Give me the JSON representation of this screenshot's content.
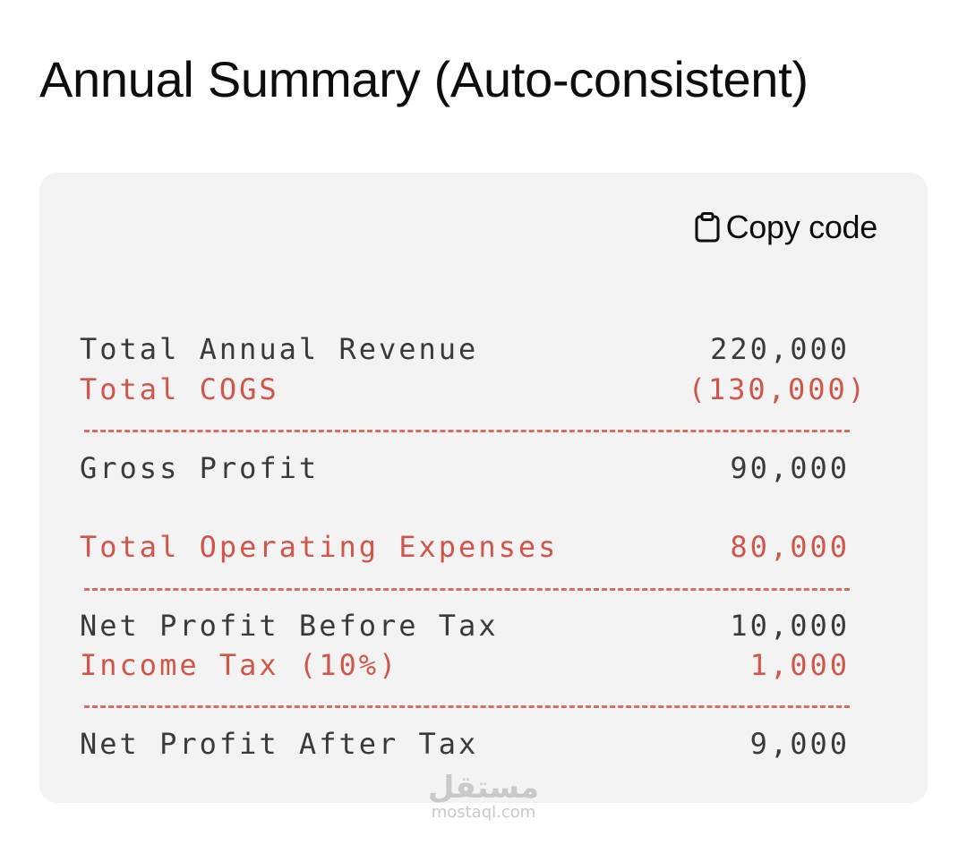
{
  "title": "Annual Summary (Auto-consistent)",
  "code_block": {
    "copy_button_label": "Copy code",
    "copy_icon": "clipboard-icon",
    "lines": [
      {
        "label": "Total Annual Revenue",
        "value": "220,000",
        "kind": "normal"
      },
      {
        "label": "Total COGS",
        "value": "(130,000)",
        "kind": "expense"
      },
      {
        "label": "Gross Profit",
        "value": "90,000",
        "kind": "normal"
      },
      {
        "label": "Total Operating Expenses",
        "value": "80,000",
        "kind": "expense"
      },
      {
        "label": "Net Profit Before Tax",
        "value": "10,000",
        "kind": "normal"
      },
      {
        "label": "Income Tax (10%)",
        "value": "1,000",
        "kind": "expense"
      },
      {
        "label": "Net Profit After Tax",
        "value": "9,000",
        "kind": "normal"
      }
    ]
  },
  "colors": {
    "text": "#3a3a3a",
    "expense": "#d0564a",
    "card_background": "#f3f3f3"
  },
  "watermark": {
    "logo_text": "مستقل",
    "domain": "mostaql.com"
  }
}
